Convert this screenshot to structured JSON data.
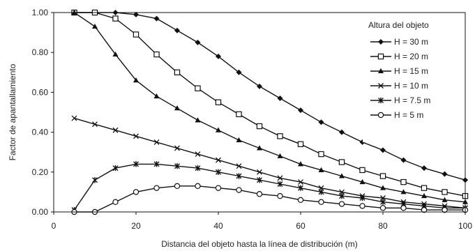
{
  "chart_data": {
    "type": "line",
    "xlabel": "Distancia del objeto hasta la línea de distribución (m)",
    "ylabel": "Factor de apantallamiento",
    "xlim": [
      0,
      100
    ],
    "ylim": [
      0,
      1.0
    ],
    "x_ticks": [
      "0",
      "20",
      "40",
      "60",
      "80",
      "100"
    ],
    "y_ticks": [
      "0.00",
      "0.20",
      "0.40",
      "0.60",
      "0.80",
      "1.00"
    ],
    "grid": false,
    "legend_position": "top-right",
    "legend_title": "Altura del objeto",
    "series": [
      {
        "name": "H = 30 m",
        "marker": "diamond-filled",
        "x": [
          5,
          10,
          15,
          20,
          25,
          30,
          35,
          40,
          45,
          50,
          55,
          60,
          65,
          70,
          75,
          80,
          85,
          90,
          95,
          100
        ],
        "y": [
          1.0,
          1.0,
          1.0,
          0.99,
          0.97,
          0.91,
          0.85,
          0.78,
          0.7,
          0.63,
          0.57,
          0.51,
          0.45,
          0.4,
          0.35,
          0.31,
          0.26,
          0.22,
          0.19,
          0.16
        ]
      },
      {
        "name": "H = 20 m",
        "marker": "square-open",
        "x": [
          5,
          10,
          15,
          20,
          25,
          30,
          35,
          40,
          45,
          50,
          55,
          60,
          65,
          70,
          75,
          80,
          85,
          90,
          95,
          100
        ],
        "y": [
          1.0,
          1.0,
          0.97,
          0.89,
          0.79,
          0.7,
          0.62,
          0.55,
          0.49,
          0.43,
          0.38,
          0.34,
          0.29,
          0.25,
          0.21,
          0.18,
          0.15,
          0.12,
          0.1,
          0.08
        ]
      },
      {
        "name": "H = 15 m",
        "marker": "triangle-filled",
        "x": [
          5,
          10,
          15,
          20,
          25,
          30,
          35,
          40,
          45,
          50,
          55,
          60,
          65,
          70,
          75,
          80,
          85,
          90,
          95,
          100
        ],
        "y": [
          1.0,
          0.93,
          0.79,
          0.66,
          0.58,
          0.52,
          0.46,
          0.41,
          0.36,
          0.32,
          0.28,
          0.24,
          0.21,
          0.18,
          0.15,
          0.12,
          0.1,
          0.08,
          0.06,
          0.05
        ]
      },
      {
        "name": "H = 10 m",
        "marker": "x",
        "x": [
          5,
          10,
          15,
          20,
          25,
          30,
          35,
          40,
          45,
          50,
          55,
          60,
          65,
          70,
          75,
          80,
          85,
          90,
          95,
          100
        ],
        "y": [
          0.47,
          0.44,
          0.41,
          0.38,
          0.35,
          0.32,
          0.29,
          0.26,
          0.23,
          0.2,
          0.17,
          0.15,
          0.12,
          0.1,
          0.08,
          0.07,
          0.05,
          0.04,
          0.03,
          0.02
        ]
      },
      {
        "name": "H = 7.5 m",
        "marker": "star",
        "x": [
          5,
          10,
          15,
          20,
          25,
          30,
          35,
          40,
          45,
          50,
          55,
          60,
          65,
          70,
          75,
          80,
          85,
          90,
          95,
          100
        ],
        "y": [
          0.01,
          0.16,
          0.22,
          0.24,
          0.24,
          0.23,
          0.22,
          0.2,
          0.18,
          0.16,
          0.14,
          0.12,
          0.1,
          0.08,
          0.07,
          0.05,
          0.04,
          0.03,
          0.02,
          0.02
        ]
      },
      {
        "name": "H = 5 m",
        "marker": "circle-open",
        "x": [
          5,
          10,
          15,
          20,
          25,
          30,
          35,
          40,
          45,
          50,
          55,
          60,
          65,
          70,
          75,
          80,
          85,
          90,
          95,
          100
        ],
        "y": [
          0.0,
          0.0,
          0.05,
          0.1,
          0.12,
          0.13,
          0.13,
          0.12,
          0.11,
          0.09,
          0.08,
          0.06,
          0.05,
          0.04,
          0.03,
          0.02,
          0.02,
          0.01,
          0.01,
          0.01
        ]
      }
    ]
  }
}
